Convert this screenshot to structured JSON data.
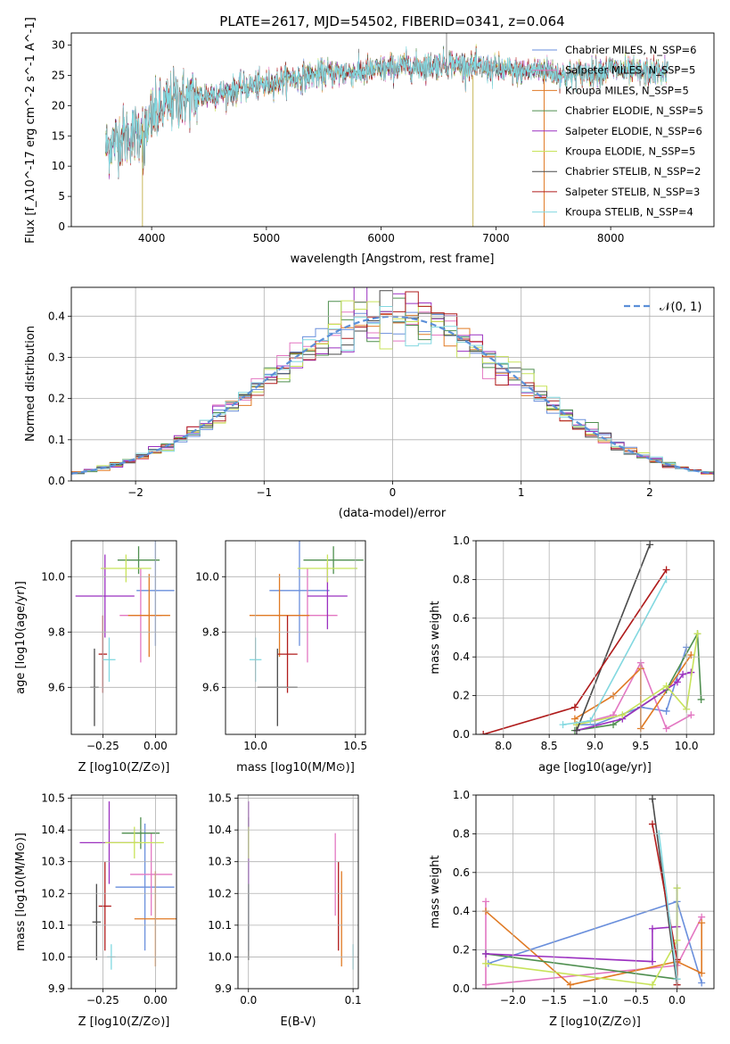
{
  "chart_data": [
    {
      "type": "line",
      "title": "PLATE=2617, MJD=54502, FIBERID=0341, z=0.064",
      "xlabel": "wavelength [Angstrom, rest frame]",
      "ylabel": "Flux [f_λ10^-17 erg cm^-2 s^-1 A^-1]",
      "xlim": [
        3300,
        8900
      ],
      "ylim": [
        0,
        32
      ],
      "xticks": [
        "4000",
        "5000",
        "6000",
        "7000",
        "8000"
      ],
      "yticks": [
        "0",
        "5",
        "10",
        "15",
        "20",
        "25",
        "30"
      ],
      "legend": "top-right",
      "series": [
        {
          "name": "Chabrier MILES, N_SSP=6",
          "color": "#6a8fdc"
        },
        {
          "name": "Salpeter MILES, N_SSP=5",
          "color": "#e377c2"
        },
        {
          "name": "Kroupa MILES, N_SSP=5",
          "color": "#e07a24"
        },
        {
          "name": "Chabrier ELODIE, N_SSP=5",
          "color": "#4f8f4f"
        },
        {
          "name": "Salpeter ELODIE, N_SSP=6",
          "color": "#9b30c0"
        },
        {
          "name": "Kroupa ELODIE, N_SSP=5",
          "color": "#c8e35a"
        },
        {
          "name": "Chabrier STELIB, N_SSP=2",
          "color": "#4a4a4a"
        },
        {
          "name": "Salpeter STELIB, N_SSP=3",
          "color": "#b01c1c"
        },
        {
          "name": "Kroupa STELIB, N_SSP=4",
          "color": "#82d8e0"
        }
      ],
      "continuum": {
        "x": [
          3600,
          3700,
          3800,
          3900,
          4000,
          4100,
          4200,
          4400,
          4600,
          4800,
          5000,
          5200,
          5400,
          5600,
          5800,
          6000,
          6200,
          6400,
          6600,
          6800,
          7000,
          7200,
          7400,
          7600,
          7800,
          8000,
          8200,
          8500
        ],
        "y": [
          13,
          14.5,
          15,
          16,
          18,
          19.5,
          21,
          21.5,
          22,
          23,
          23.5,
          24.5,
          25,
          25.5,
          25.5,
          26,
          26.5,
          26.5,
          27,
          26.5,
          26,
          25.5,
          26,
          25,
          25.5,
          26,
          25.5,
          25.5
        ]
      }
    },
    {
      "type": "line",
      "xlabel": "(data-model)/error",
      "ylabel": "Normed distribution",
      "xlim": [
        -2.5,
        2.5
      ],
      "ylim": [
        0,
        0.47
      ],
      "xticks": [
        "−2",
        "−1",
        "0",
        "1",
        "2"
      ],
      "yticks": [
        "0.0",
        "0.1",
        "0.2",
        "0.3",
        "0.4"
      ],
      "legend_label": "𝒩(0, 1)",
      "gaussian": {
        "mean": 0,
        "sigma": 1,
        "color": "#5b8fd8"
      },
      "histograms_note": "9 step histograms, bin width 0.1, same colors as series above"
    },
    {
      "type": "scatter",
      "xlabel": "Z [log10(Z/Z⊙)]",
      "ylabel": "age  [log10(age/yr)]",
      "xlim": [
        -0.4,
        0.1
      ],
      "ylim": [
        9.43,
        10.13
      ],
      "xticks": [
        "−0.25",
        "0.00"
      ],
      "yticks": [
        "9.6",
        "9.8",
        "10.0"
      ],
      "points": [
        {
          "x": 0.0,
          "y": 9.95,
          "xerr": 0.09,
          "yerr": 0.2,
          "color": "#6a8fdc"
        },
        {
          "x": -0.07,
          "y": 9.86,
          "xerr": 0.1,
          "yerr": 0.17,
          "color": "#e377c2"
        },
        {
          "x": -0.03,
          "y": 9.86,
          "xerr": 0.1,
          "yerr": 0.15,
          "color": "#e07a24"
        },
        {
          "x": -0.08,
          "y": 10.06,
          "xerr": 0.1,
          "yerr": 0.05,
          "color": "#4f8f4f"
        },
        {
          "x": -0.24,
          "y": 9.93,
          "xerr": 0.14,
          "yerr": 0.15,
          "color": "#9b30c0"
        },
        {
          "x": -0.14,
          "y": 10.03,
          "xerr": 0.12,
          "yerr": 0.05,
          "color": "#c8e35a"
        },
        {
          "x": -0.29,
          "y": 9.6,
          "xerr": 0.02,
          "yerr": 0.14,
          "color": "#4a4a4a"
        },
        {
          "x": -0.25,
          "y": 9.72,
          "xerr": 0.02,
          "yerr": 0.14,
          "color": "#b01c1c"
        },
        {
          "x": -0.22,
          "y": 9.7,
          "xerr": 0.03,
          "yerr": 0.08,
          "color": "#82d8e0"
        }
      ]
    },
    {
      "type": "scatter",
      "xlabel": "mass [log10(M/M⊙)]",
      "ylabel": "",
      "xlim": [
        9.85,
        10.55
      ],
      "ylim": [
        9.43,
        10.13
      ],
      "xticks": [
        "10.0",
        "10.5"
      ],
      "yticks": [
        "9.6",
        "9.8",
        "10.0"
      ],
      "points": [
        {
          "x": 10.22,
          "y": 9.95,
          "xerr": 0.15,
          "yerr": 0.2,
          "color": "#6a8fdc"
        },
        {
          "x": 10.26,
          "y": 9.86,
          "xerr": 0.15,
          "yerr": 0.17,
          "color": "#e377c2"
        },
        {
          "x": 10.12,
          "y": 9.86,
          "xerr": 0.15,
          "yerr": 0.15,
          "color": "#e07a24"
        },
        {
          "x": 10.39,
          "y": 10.06,
          "xerr": 0.15,
          "yerr": 0.05,
          "color": "#4f8f4f"
        },
        {
          "x": 10.36,
          "y": 9.93,
          "xerr": 0.1,
          "yerr": 0.12,
          "color": "#9b30c0"
        },
        {
          "x": 10.36,
          "y": 10.03,
          "xerr": 0.15,
          "yerr": 0.05,
          "color": "#c8e35a"
        },
        {
          "x": 10.11,
          "y": 9.6,
          "xerr": 0.1,
          "yerr": 0.14,
          "color": "#4a4a4a"
        },
        {
          "x": 10.16,
          "y": 9.72,
          "xerr": 0.05,
          "yerr": 0.14,
          "color": "#b01c1c"
        },
        {
          "x": 10.0,
          "y": 9.7,
          "xerr": 0.03,
          "yerr": 0.08,
          "color": "#82d8e0"
        }
      ]
    },
    {
      "type": "line",
      "xlabel": "age  [log10(age/yr)]",
      "ylabel": "mass weight",
      "xlim": [
        7.7,
        10.3
      ],
      "ylim": [
        0,
        1.0
      ],
      "xticks": [
        "8.0",
        "8.5",
        "9.0",
        "9.5",
        "10.0"
      ],
      "yticks": [
        "0.0",
        "0.2",
        "0.4",
        "0.6",
        "0.8",
        "1.0"
      ],
      "series": [
        {
          "color": "#6a8fdc",
          "x": [
            8.8,
            9.0,
            9.5,
            9.78,
            10.0
          ],
          "y": [
            0.05,
            0.05,
            0.14,
            0.12,
            0.45
          ]
        },
        {
          "color": "#e377c2",
          "x": [
            8.8,
            9.2,
            9.5,
            9.78,
            10.05
          ],
          "y": [
            0.05,
            0.1,
            0.37,
            0.03,
            0.1
          ]
        },
        {
          "color": "#e07a24",
          "x": [
            8.78,
            9.2,
            9.5,
            9.5,
            10.05
          ],
          "y": [
            0.08,
            0.2,
            0.34,
            0.03,
            0.41
          ]
        },
        {
          "color": "#4f8f4f",
          "x": [
            8.78,
            9.2,
            9.78,
            10.12,
            10.16
          ],
          "y": [
            0.02,
            0.05,
            0.23,
            0.52,
            0.18
          ]
        },
        {
          "color": "#9b30c0",
          "x": [
            8.8,
            9.3,
            9.9,
            9.96,
            10.05
          ],
          "y": [
            0.02,
            0.08,
            0.27,
            0.31,
            0.32
          ]
        },
        {
          "color": "#c8e35a",
          "x": [
            8.8,
            9.3,
            9.78,
            10.0,
            10.12
          ],
          "y": [
            0.05,
            0.1,
            0.25,
            0.13,
            0.52
          ]
        },
        {
          "color": "#4a4a4a",
          "x": [
            8.8,
            9.6
          ],
          "y": [
            0.02,
            0.98
          ]
        },
        {
          "color": "#b01c1c",
          "x": [
            7.78,
            8.78,
            9.78
          ],
          "y": [
            0.0,
            0.14,
            0.85
          ]
        },
        {
          "color": "#82d8e0",
          "x": [
            8.65,
            8.95,
            9.78
          ],
          "y": [
            0.05,
            0.07,
            0.8
          ]
        }
      ]
    },
    {
      "type": "scatter",
      "xlabel": "Z [log10(Z/Z⊙)]",
      "ylabel": "mass [log10(M/M⊙)]",
      "xlim": [
        -0.4,
        0.1
      ],
      "ylim": [
        9.9,
        10.51
      ],
      "xticks": [
        "−0.25",
        "0.00"
      ],
      "yticks": [
        "9.9",
        "10.0",
        "10.1",
        "10.2",
        "10.3",
        "10.4",
        "10.5"
      ],
      "points": [
        {
          "x": -0.05,
          "y": 10.22,
          "xerr": 0.14,
          "yerr": 0.2,
          "color": "#6a8fdc"
        },
        {
          "x": -0.02,
          "y": 10.26,
          "xerr": 0.1,
          "yerr": 0.13,
          "color": "#e377c2"
        },
        {
          "x": 0.0,
          "y": 10.12,
          "xerr": 0.1,
          "yerr": 0.15,
          "color": "#e07a24"
        },
        {
          "x": -0.07,
          "y": 10.39,
          "xerr": 0.09,
          "yerr": 0.05,
          "color": "#4f8f4f"
        },
        {
          "x": -0.22,
          "y": 10.36,
          "xerr": 0.14,
          "yerr": 0.13,
          "color": "#9b30c0"
        },
        {
          "x": -0.1,
          "y": 10.36,
          "xerr": 0.14,
          "yerr": 0.05,
          "color": "#c8e35a"
        },
        {
          "x": -0.28,
          "y": 10.11,
          "xerr": 0.02,
          "yerr": 0.12,
          "color": "#4a4a4a"
        },
        {
          "x": -0.24,
          "y": 10.16,
          "xerr": 0.03,
          "yerr": 0.14,
          "color": "#b01c1c"
        },
        {
          "x": -0.21,
          "y": 10.0,
          "xerr": 0.02,
          "yerr": 0.04,
          "color": "#82d8e0"
        }
      ]
    },
    {
      "type": "scatter",
      "xlabel": "E(B-V)",
      "ylabel": "",
      "xlim": [
        -0.01,
        0.105
      ],
      "ylim": [
        9.9,
        10.51
      ],
      "xticks": [
        "0.0",
        "0.1"
      ],
      "yticks": [
        "9.9",
        "10.0",
        "10.1",
        "10.2",
        "10.3",
        "10.4",
        "10.5"
      ],
      "points": [
        {
          "x": 0.0,
          "y": 10.22,
          "yerr": 0.2,
          "color": "#6a8fdc"
        },
        {
          "x": 0.083,
          "y": 10.26,
          "yerr": 0.13,
          "color": "#e377c2"
        },
        {
          "x": 0.089,
          "y": 10.12,
          "yerr": 0.15,
          "color": "#e07a24"
        },
        {
          "x": 0.0,
          "y": 10.39,
          "yerr": 0.05,
          "color": "#4f8f4f"
        },
        {
          "x": 0.0,
          "y": 10.36,
          "yerr": 0.13,
          "color": "#9b30c0"
        },
        {
          "x": 0.0,
          "y": 10.36,
          "yerr": 0.05,
          "color": "#c8e35a"
        },
        {
          "x": 0.0,
          "y": 10.11,
          "yerr": 0.12,
          "color": "#4a4a4a"
        },
        {
          "x": 0.086,
          "y": 10.16,
          "yerr": 0.14,
          "color": "#b01c1c"
        },
        {
          "x": 0.1,
          "y": 10.0,
          "yerr": 0.04,
          "color": "#82d8e0"
        }
      ]
    },
    {
      "type": "line",
      "xlabel": "Z [log10(Z/Z⊙)]",
      "ylabel": "mass weight",
      "xlim": [
        -2.45,
        0.45
      ],
      "ylim": [
        0,
        1.0
      ],
      "xticks": [
        "−2.0",
        "−1.5",
        "−1.0",
        "−0.5",
        "0.0"
      ],
      "yticks": [
        "0.0",
        "0.2",
        "0.4",
        "0.6",
        "0.8",
        "1.0"
      ],
      "series": [
        {
          "color": "#6a8fdc",
          "x": [
            -2.3,
            0.0,
            0.3
          ],
          "y": [
            0.13,
            0.45,
            0.03
          ]
        },
        {
          "color": "#e377c2",
          "x": [
            -2.33,
            -2.33,
            0.0,
            0.3
          ],
          "y": [
            0.45,
            0.02,
            0.12,
            0.37
          ]
        },
        {
          "color": "#e07a24",
          "x": [
            -2.33,
            -1.3,
            0.0,
            0.3,
            0.3
          ],
          "y": [
            0.4,
            0.02,
            0.14,
            0.08,
            0.34
          ]
        },
        {
          "color": "#4f8f4f",
          "x": [
            -2.33,
            0.0,
            0.0
          ],
          "y": [
            0.18,
            0.05,
            0.52
          ]
        },
        {
          "color": "#9b30c0",
          "x": [
            -2.33,
            -0.3,
            -0.3,
            0.0
          ],
          "y": [
            0.18,
            0.14,
            0.31,
            0.32
          ]
        },
        {
          "color": "#c8e35a",
          "x": [
            -2.33,
            -0.3,
            0.0,
            0.0
          ],
          "y": [
            0.13,
            0.02,
            0.25,
            0.52
          ]
        },
        {
          "color": "#4a4a4a",
          "x": [
            -0.3,
            0.0
          ],
          "y": [
            0.98,
            0.02
          ]
        },
        {
          "color": "#b01c1c",
          "x": [
            -0.3,
            0.0,
            0.0
          ],
          "y": [
            0.85,
            0.15,
            0.02
          ]
        },
        {
          "color": "#82d8e0",
          "x": [
            -0.22,
            0.0
          ],
          "y": [
            0.8,
            0.05
          ]
        }
      ]
    }
  ]
}
